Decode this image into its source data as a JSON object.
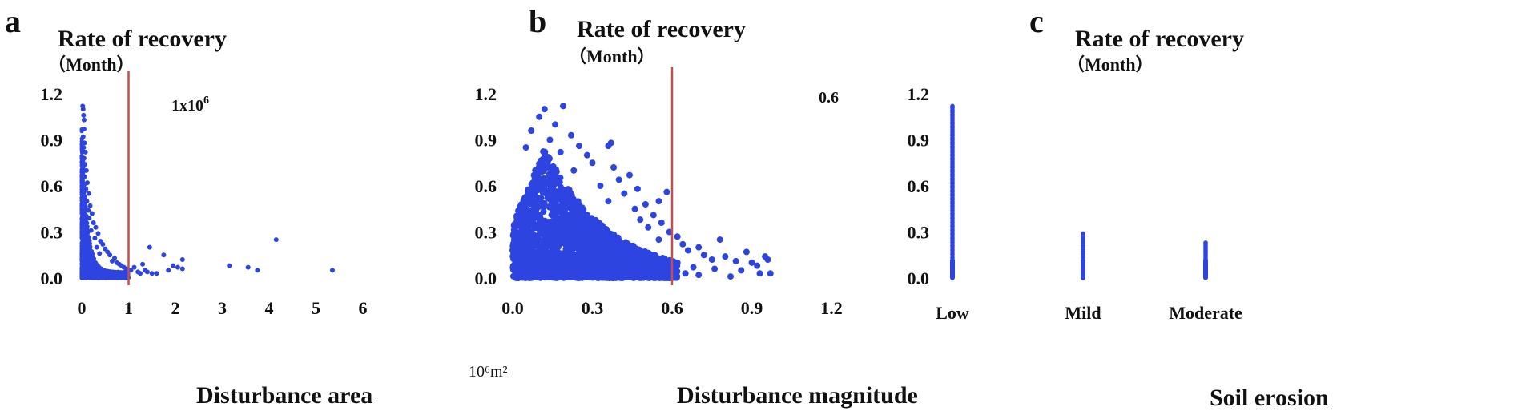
{
  "chart_data": [
    {
      "panel": "a",
      "type": "scatter",
      "ylabel": "Rate of recovery",
      "ylabel_unit": "（Month）",
      "xlabel": "Disturbance area",
      "x_unit": "10⁶m²",
      "x_ticks": [
        "0",
        "1",
        "2",
        "3",
        "4",
        "5",
        "6"
      ],
      "y_ticks": [
        "0.0",
        "0.3",
        "0.6",
        "0.9",
        "1.2"
      ],
      "xlim": [
        -0.2,
        6.6
      ],
      "ylim": [
        -0.04,
        1.38
      ],
      "threshold": {
        "x": 1,
        "label": "1x10",
        "label_sup": "6",
        "color": "#c0504d"
      },
      "marker_color": "#2e44e0",
      "points": [
        [
          0.02,
          1.12
        ],
        [
          0.03,
          1.1
        ],
        [
          0.04,
          1.06
        ],
        [
          0.05,
          1.03
        ],
        [
          0.05,
          0.97
        ],
        [
          0.03,
          0.92
        ],
        [
          0.06,
          0.88
        ],
        [
          0.04,
          0.85
        ],
        [
          0.08,
          0.82
        ],
        [
          0.05,
          0.78
        ],
        [
          0.07,
          0.74
        ],
        [
          0.1,
          0.7
        ],
        [
          0.06,
          0.66
        ],
        [
          0.12,
          0.62
        ],
        [
          0.09,
          0.58
        ],
        [
          0.15,
          0.55
        ],
        [
          0.11,
          0.5
        ],
        [
          0.18,
          0.47
        ],
        [
          0.14,
          0.44
        ],
        [
          0.22,
          0.42
        ],
        [
          0.16,
          0.39
        ],
        [
          0.25,
          0.36
        ],
        [
          0.3,
          0.33
        ],
        [
          0.2,
          0.31
        ],
        [
          0.35,
          0.29
        ],
        [
          0.28,
          0.26
        ],
        [
          0.4,
          0.24
        ],
        [
          0.45,
          0.22
        ],
        [
          0.32,
          0.2
        ],
        [
          0.5,
          0.19
        ],
        [
          0.55,
          0.17
        ],
        [
          0.6,
          0.15
        ],
        [
          0.38,
          0.16
        ],
        [
          0.7,
          0.13
        ],
        [
          0.65,
          0.11
        ],
        [
          0.75,
          0.1
        ],
        [
          0.8,
          0.09
        ],
        [
          0.85,
          0.08
        ],
        [
          0.9,
          0.07
        ],
        [
          0.95,
          0.06
        ],
        [
          1.05,
          0.05
        ],
        [
          1.12,
          0.07
        ],
        [
          1.2,
          0.04
        ],
        [
          1.25,
          0.03
        ],
        [
          1.3,
          0.09
        ],
        [
          1.35,
          0.05
        ],
        [
          1.4,
          0.04
        ],
        [
          1.45,
          0.2
        ],
        [
          1.5,
          0.03
        ],
        [
          1.6,
          0.03
        ],
        [
          1.75,
          0.15
        ],
        [
          1.85,
          0.05
        ],
        [
          1.95,
          0.08
        ],
        [
          2.05,
          0.07
        ],
        [
          2.15,
          0.12
        ],
        [
          2.15,
          0.06
        ],
        [
          3.15,
          0.08
        ],
        [
          3.55,
          0.07
        ],
        [
          3.75,
          0.05
        ],
        [
          4.15,
          0.25
        ],
        [
          5.35,
          0.05
        ]
      ],
      "dense_region": {
        "x_max": 1.0,
        "y_max": 0.35,
        "comment_free": true
      }
    },
    {
      "panel": "b",
      "type": "scatter",
      "ylabel": "Rate of recovery",
      "ylabel_unit": "（Month）",
      "xlabel": "Disturbance magnitude",
      "x_ticks": [
        "0.0",
        "0.3",
        "0.6",
        "0.9",
        "1.2"
      ],
      "y_ticks": [
        "0.0",
        "0.3",
        "0.6",
        "0.9",
        "1.2"
      ],
      "xlim": [
        -0.03,
        1.25
      ],
      "ylim": [
        -0.04,
        1.38
      ],
      "threshold": {
        "x": 0.6,
        "label": "0.6",
        "color": "#c0504d"
      },
      "marker_color": "#2e44e0",
      "points": [
        [
          0.12,
          1.1
        ],
        [
          0.19,
          1.12
        ],
        [
          0.1,
          1.05
        ],
        [
          0.16,
          1.0
        ],
        [
          0.07,
          0.96
        ],
        [
          0.22,
          0.93
        ],
        [
          0.14,
          0.9
        ],
        [
          0.25,
          0.86
        ],
        [
          0.37,
          0.88
        ],
        [
          0.36,
          0.86
        ],
        [
          0.05,
          0.85
        ],
        [
          0.18,
          0.82
        ],
        [
          0.28,
          0.8
        ],
        [
          0.3,
          0.75
        ],
        [
          0.38,
          0.72
        ],
        [
          0.44,
          0.67
        ],
        [
          0.4,
          0.64
        ],
        [
          0.23,
          0.7
        ],
        [
          0.33,
          0.6
        ],
        [
          0.47,
          0.58
        ],
        [
          0.42,
          0.55
        ],
        [
          0.36,
          0.5
        ],
        [
          0.5,
          0.48
        ],
        [
          0.46,
          0.45
        ],
        [
          0.55,
          0.5
        ],
        [
          0.58,
          0.56
        ],
        [
          0.53,
          0.41
        ],
        [
          0.48,
          0.38
        ],
        [
          0.56,
          0.36
        ],
        [
          0.51,
          0.33
        ],
        [
          0.59,
          0.3
        ],
        [
          0.62,
          0.27
        ],
        [
          0.55,
          0.25
        ],
        [
          0.64,
          0.22
        ],
        [
          0.7,
          0.2
        ],
        [
          0.66,
          0.18
        ],
        [
          0.72,
          0.15
        ],
        [
          0.78,
          0.25
        ],
        [
          0.8,
          0.14
        ],
        [
          0.75,
          0.12
        ],
        [
          0.84,
          0.11
        ],
        [
          0.88,
          0.17
        ],
        [
          0.9,
          0.1
        ],
        [
          0.92,
          0.08
        ],
        [
          0.95,
          0.14
        ],
        [
          0.96,
          0.12
        ],
        [
          0.97,
          0.03
        ],
        [
          0.93,
          0.03
        ],
        [
          0.86,
          0.05
        ],
        [
          0.76,
          0.06
        ],
        [
          0.68,
          0.07
        ],
        [
          0.62,
          0.1
        ],
        [
          0.65,
          0.03
        ],
        [
          0.7,
          0.02
        ],
        [
          0.82,
          0.01
        ]
      ],
      "dense_region": {
        "x_max": 0.6,
        "y_max": 0.85,
        "comment_free": true
      }
    },
    {
      "panel": "c",
      "type": "scatter",
      "ylabel": "Rate of recovery",
      "ylabel_unit": "（Month）",
      "xlabel": "Soil erosion",
      "categories": [
        "Low",
        "Mild",
        "Moderate"
      ],
      "y_ticks": [
        "0.0",
        "0.3",
        "0.6",
        "0.9",
        "1.2"
      ],
      "ylim": [
        -0.04,
        1.38
      ],
      "marker_color": "#2e44e0",
      "category_ranges": [
        {
          "category": "Low",
          "min": 0.0,
          "max": 1.12
        },
        {
          "category": "Mild",
          "min": 0.0,
          "max": 0.29
        },
        {
          "category": "Moderate",
          "min": 0.0,
          "max": 0.23
        }
      ]
    }
  ]
}
